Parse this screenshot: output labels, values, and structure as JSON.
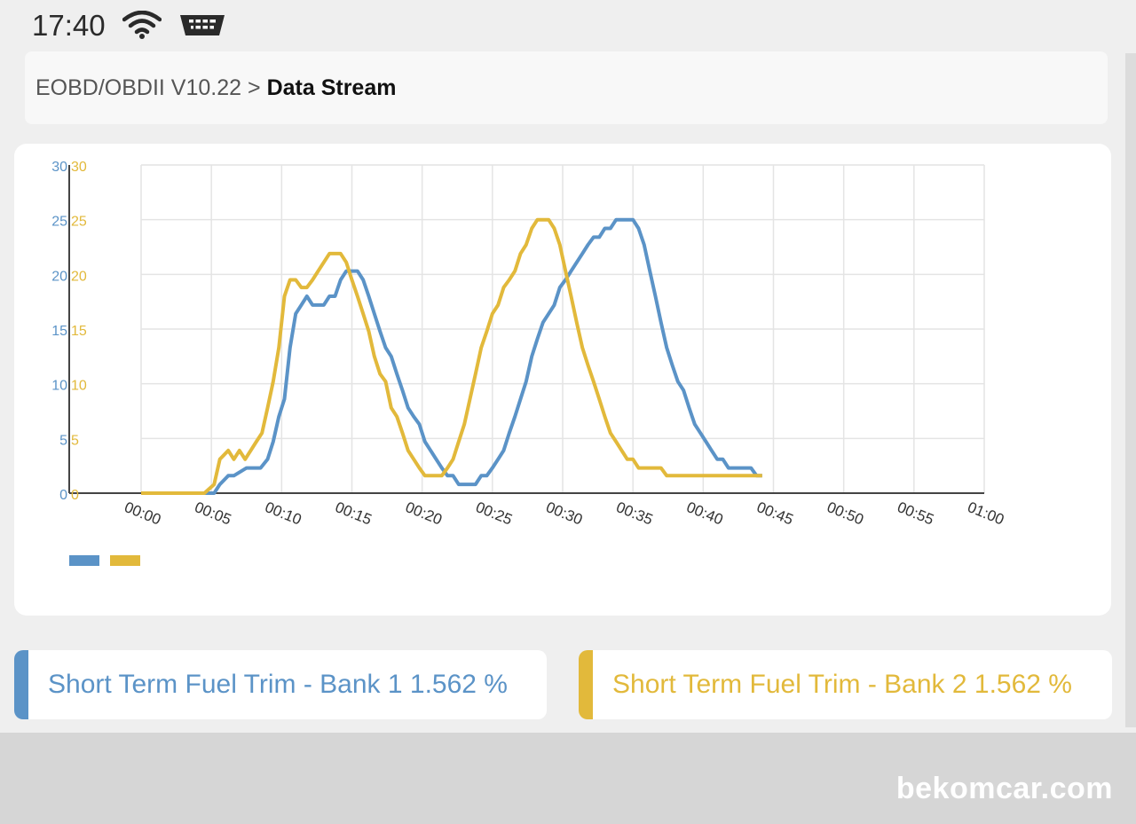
{
  "status_bar": {
    "time": "17:40",
    "icons": [
      "wifi-icon",
      "obd-adapter-icon"
    ]
  },
  "breadcrumb": {
    "parent": "EOBD/OBDII V10.22",
    "separator": ">",
    "current": "Data Stream"
  },
  "colors": {
    "bank1": "#5b93c7",
    "bank2": "#e2b93b"
  },
  "chart_data": {
    "type": "line",
    "ylim": [
      0,
      30
    ],
    "yticks": [
      "0",
      "5",
      "10",
      "15",
      "20",
      "25",
      "30"
    ],
    "xlim": [
      0,
      60
    ],
    "xticks": [
      "00:00",
      "00:05",
      "00:10",
      "00:15",
      "00:20",
      "00:25",
      "00:30",
      "00:35",
      "00:40",
      "00:45",
      "00:50",
      "00:55",
      "01:00"
    ],
    "grid": true,
    "legend": "bottom-left",
    "series": [
      {
        "color": "#5b93c7",
        "x": [
          0,
          4.5,
          5.2,
          5.6,
          6.2,
          6.6,
          7.5,
          8.5,
          9.0,
          9.4,
          9.8,
          10.2,
          10.6,
          11.0,
          11.4,
          11.8,
          12.2,
          12.6,
          13.0,
          13.4,
          13.8,
          14.2,
          14.6,
          15.0,
          15.4,
          15.8,
          16.2,
          16.6,
          17.0,
          17.4,
          17.8,
          18.2,
          18.6,
          19.0,
          19.4,
          19.8,
          20.2,
          20.6,
          21.0,
          21.4,
          21.8,
          22.2,
          22.6,
          23.0,
          23.4,
          23.8,
          24.2,
          24.6,
          25.0,
          25.4,
          25.8,
          26.2,
          26.6,
          27.0,
          27.4,
          27.8,
          28.2,
          28.6,
          29.0,
          29.4,
          29.8,
          30.2,
          30.6,
          31.0,
          31.4,
          31.8,
          32.2,
          32.6,
          33.0,
          33.4,
          33.8,
          34.2,
          34.6,
          35.0,
          35.4,
          35.8,
          36.2,
          36.6,
          37.0,
          37.4,
          37.8,
          38.2,
          38.6,
          39.0,
          39.4,
          39.8,
          40.2,
          40.6,
          41.0,
          41.4,
          41.8,
          42.2,
          42.6,
          43.0,
          43.4,
          43.8,
          44.2
        ],
        "values": [
          0,
          0,
          0,
          0.8,
          1.6,
          1.6,
          2.3,
          2.3,
          3.1,
          4.7,
          7.0,
          8.6,
          13.3,
          16.4,
          17.2,
          18.0,
          17.2,
          17.2,
          17.2,
          18.0,
          18.0,
          19.5,
          20.3,
          20.3,
          20.3,
          19.5,
          18.0,
          16.4,
          14.8,
          13.3,
          12.5,
          10.9,
          9.4,
          7.8,
          7.0,
          6.3,
          4.7,
          3.9,
          3.1,
          2.3,
          1.6,
          1.6,
          0.8,
          0.8,
          0.8,
          0.8,
          1.6,
          1.6,
          2.3,
          3.1,
          3.9,
          5.5,
          7.0,
          8.6,
          10.2,
          12.5,
          14.1,
          15.6,
          16.4,
          17.2,
          18.8,
          19.5,
          20.3,
          21.1,
          21.9,
          22.7,
          23.4,
          23.4,
          24.2,
          24.2,
          25.0,
          25.0,
          25.0,
          25.0,
          24.2,
          22.7,
          20.3,
          18.0,
          15.6,
          13.3,
          11.7,
          10.2,
          9.4,
          7.8,
          6.3,
          5.5,
          4.7,
          3.9,
          3.1,
          3.1,
          2.3,
          2.3,
          2.3,
          2.3,
          2.3,
          1.6,
          1.6
        ]
      },
      {
        "color": "#e2b93b",
        "x": [
          0,
          4.5,
          5.2,
          5.6,
          6.2,
          6.6,
          7.0,
          7.4,
          7.8,
          8.2,
          8.6,
          9.0,
          9.4,
          9.8,
          10.2,
          10.6,
          11.0,
          11.4,
          11.8,
          12.2,
          12.6,
          13.0,
          13.4,
          13.8,
          14.2,
          14.6,
          15.0,
          15.4,
          15.8,
          16.2,
          16.6,
          17.0,
          17.4,
          17.8,
          18.2,
          18.6,
          19.0,
          19.4,
          19.8,
          20.2,
          20.6,
          21.0,
          21.4,
          21.8,
          22.2,
          22.6,
          23.0,
          23.4,
          23.8,
          24.2,
          24.6,
          25.0,
          25.4,
          25.8,
          26.2,
          26.6,
          27.0,
          27.4,
          27.8,
          28.2,
          28.6,
          29.0,
          29.4,
          29.8,
          30.2,
          30.6,
          31.0,
          31.4,
          31.8,
          32.2,
          32.6,
          33.0,
          33.4,
          33.8,
          34.2,
          34.6,
          35.0,
          35.4,
          35.8,
          36.2,
          36.6,
          37.0,
          37.4,
          37.8,
          38.2,
          38.6,
          39.0,
          39.4,
          39.8,
          40.2,
          40.6,
          41.0,
          41.4,
          41.8,
          42.2,
          42.6,
          43.0,
          43.4,
          43.8,
          44.2
        ],
        "values": [
          0,
          0,
          0.8,
          3.1,
          3.9,
          3.1,
          3.9,
          3.1,
          3.9,
          4.7,
          5.5,
          7.8,
          10.2,
          13.3,
          18.0,
          19.5,
          19.5,
          18.8,
          18.8,
          19.5,
          20.3,
          21.1,
          21.9,
          21.9,
          21.9,
          21.1,
          19.5,
          18.0,
          16.4,
          14.8,
          12.5,
          10.9,
          10.2,
          7.8,
          7.0,
          5.5,
          3.9,
          3.1,
          2.3,
          1.6,
          1.6,
          1.6,
          1.6,
          2.3,
          3.1,
          4.7,
          6.3,
          8.6,
          10.9,
          13.3,
          14.8,
          16.4,
          17.2,
          18.8,
          19.5,
          20.3,
          21.9,
          22.7,
          24.2,
          25.0,
          25.0,
          25.0,
          24.2,
          22.7,
          20.3,
          18.0,
          15.6,
          13.3,
          11.7,
          10.2,
          8.6,
          7.0,
          5.5,
          4.7,
          3.9,
          3.1,
          3.1,
          2.3,
          2.3,
          2.3,
          2.3,
          2.3,
          1.6,
          1.6,
          1.6,
          1.6,
          1.6,
          1.6,
          1.6,
          1.6,
          1.6,
          1.6,
          1.6,
          1.6,
          1.6,
          1.6,
          1.6,
          1.6,
          1.6,
          1.6
        ]
      }
    ]
  },
  "pids": [
    {
      "label": "Short Term Fuel Trim - Bank 1 1.562 %",
      "color": "#5b93c7"
    },
    {
      "label": "Short Term Fuel Trim - Bank 2 1.562 %",
      "color": "#e2b93b"
    }
  ],
  "watermark": "bekomcar.com"
}
